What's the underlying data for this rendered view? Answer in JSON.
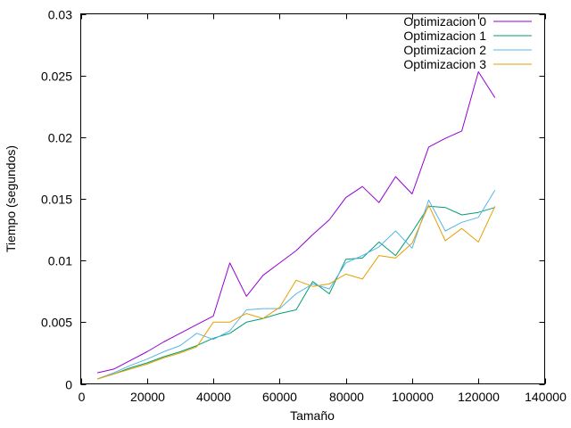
{
  "chart_data": {
    "type": "line",
    "xlabel": "Tamaño",
    "ylabel": "Tiempo (segundos)",
    "xlim": [
      0,
      140000
    ],
    "ylim": [
      0,
      0.03
    ],
    "x_ticks": [
      0,
      20000,
      40000,
      60000,
      80000,
      100000,
      120000,
      140000
    ],
    "y_ticks": [
      0,
      0.005,
      0.01,
      0.015,
      0.02,
      0.025,
      0.03
    ],
    "x_tick_labels": [
      "0",
      "20000",
      "40000",
      "60000",
      "80000",
      "100000",
      "120000",
      "140000"
    ],
    "y_tick_labels": [
      "0",
      "0.005",
      "0.01",
      "0.015",
      "0.02",
      "0.025",
      "0.03"
    ],
    "grid": false,
    "legend_position": "top-right",
    "x": [
      5000,
      10000,
      15000,
      20000,
      25000,
      30000,
      35000,
      40000,
      45000,
      50000,
      55000,
      60000,
      65000,
      70000,
      75000,
      80000,
      85000,
      90000,
      95000,
      100000,
      105000,
      110000,
      115000,
      120000,
      125000
    ],
    "series": [
      {
        "name": "Optimizacion 0",
        "color": "#9400d3",
        "values": [
          0.0009,
          0.0012,
          0.0019,
          0.0026,
          0.0034,
          0.0041,
          0.0048,
          0.0055,
          0.0098,
          0.0071,
          0.0088,
          0.0098,
          0.0108,
          0.0121,
          0.0133,
          0.0151,
          0.016,
          0.0147,
          0.0168,
          0.0154,
          0.0192,
          0.0199,
          0.0205,
          0.0253,
          0.0232
        ]
      },
      {
        "name": "Optimizacion 1",
        "color": "#009e73",
        "values": [
          0.0004,
          0.0008,
          0.0013,
          0.0017,
          0.0022,
          0.0026,
          0.0031,
          0.0037,
          0.0041,
          0.005,
          0.0053,
          0.0057,
          0.006,
          0.0083,
          0.0073,
          0.0101,
          0.0102,
          0.0115,
          0.0104,
          0.0123,
          0.0144,
          0.0143,
          0.0137,
          0.0139,
          0.0143
        ]
      },
      {
        "name": "Optimizacion 2",
        "color": "#56b4e9",
        "values": [
          0.0004,
          0.0009,
          0.0015,
          0.002,
          0.0026,
          0.0031,
          0.0041,
          0.0036,
          0.0043,
          0.006,
          0.0061,
          0.0061,
          0.0073,
          0.0081,
          0.0077,
          0.0098,
          0.0104,
          0.0111,
          0.0124,
          0.011,
          0.0149,
          0.0124,
          0.0131,
          0.0135,
          0.0157
        ]
      },
      {
        "name": "Optimizacion 3",
        "color": "#e69f00",
        "values": [
          0.0004,
          0.0008,
          0.0012,
          0.0016,
          0.0021,
          0.0025,
          0.003,
          0.005,
          0.005,
          0.0057,
          0.0053,
          0.0062,
          0.0084,
          0.0079,
          0.0081,
          0.0089,
          0.0085,
          0.0104,
          0.0102,
          0.0114,
          0.0145,
          0.0116,
          0.0126,
          0.0115,
          0.0144
        ]
      }
    ]
  }
}
